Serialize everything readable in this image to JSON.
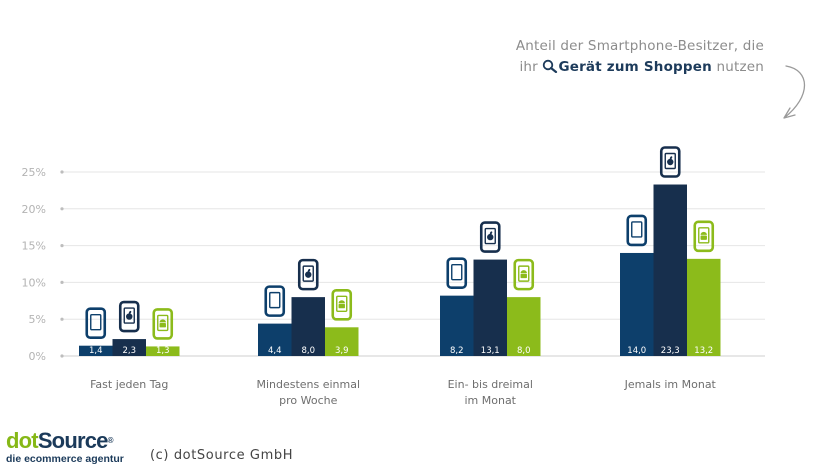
{
  "caption": {
    "line1": "Anteil der Smartphone-Besitzer, die",
    "line2_prefix": "ihr",
    "line2_em": "Gerät zum Shoppen",
    "line2_suffix": "nutzen"
  },
  "chart_data": {
    "type": "bar",
    "categories": [
      [
        "Fast jeden Tag"
      ],
      [
        "Mindestens einmal",
        "pro Woche"
      ],
      [
        "Ein- bis dreimal",
        "im Monat"
      ],
      [
        "Jemals im Monat"
      ]
    ],
    "series": [
      {
        "icon": "smartphone-icon",
        "color": "#0d3f6b",
        "values": [
          1.4,
          4.4,
          8.2,
          14.0
        ],
        "labels": [
          "1,4",
          "4,4",
          "8,2",
          "14,0"
        ]
      },
      {
        "icon": "apple-phone-icon",
        "color": "#172f4d",
        "values": [
          2.3,
          8.0,
          13.1,
          23.3
        ],
        "labels": [
          "2,3",
          "8,0",
          "13,1",
          "23,3"
        ]
      },
      {
        "icon": "android-phone-icon",
        "color": "#8cbb1b",
        "values": [
          1.3,
          3.9,
          8.0,
          13.2
        ],
        "labels": [
          "1,3",
          "3,9",
          "8,0",
          "13,2"
        ]
      }
    ],
    "yticks": [
      "0%",
      "5%",
      "10%",
      "15%",
      "20%",
      "25%"
    ],
    "ylim": [
      0,
      25
    ],
    "grid": true,
    "xlabel": "",
    "ylabel": ""
  },
  "footer": {
    "logo_dot": "dot",
    "logo_source": "Source",
    "logo_reg": "®",
    "logo_sub": "die ecommerce agentur",
    "copyright": "(c) dotSource GmbH"
  }
}
